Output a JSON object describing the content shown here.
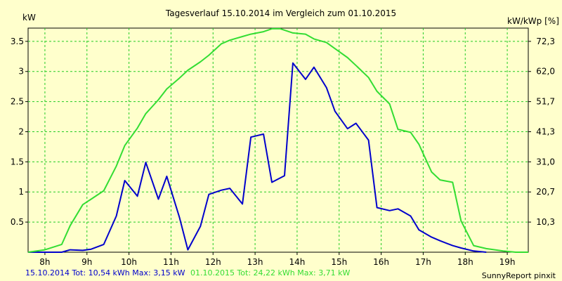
{
  "chart_data": {
    "type": "line",
    "title": "Tagesverlauf 15.10.2014 im Vergleich zum 01.10.2015",
    "ylabel_left": "kW",
    "ylabel_right": "kW/kWp [%]",
    "xlim": [
      7.6,
      19.5
    ],
    "ylim": [
      0,
      3.72
    ],
    "x_ticks": [
      {
        "value": 8,
        "label": "8h"
      },
      {
        "value": 9,
        "label": "9h"
      },
      {
        "value": 10,
        "label": "10h"
      },
      {
        "value": 11,
        "label": "11h"
      },
      {
        "value": 12,
        "label": "12h"
      },
      {
        "value": 13,
        "label": "13h"
      },
      {
        "value": 14,
        "label": "14h"
      },
      {
        "value": 15,
        "label": "15h"
      },
      {
        "value": 16,
        "label": "16h"
      },
      {
        "value": 17,
        "label": "17h"
      },
      {
        "value": 18,
        "label": "18h"
      },
      {
        "value": 19,
        "label": "19h"
      }
    ],
    "y_ticks_left": [
      {
        "value": 0.5,
        "label": "0.5"
      },
      {
        "value": 1,
        "label": "1"
      },
      {
        "value": 1.5,
        "label": "1.5"
      },
      {
        "value": 2,
        "label": "2"
      },
      {
        "value": 2.5,
        "label": "2.5"
      },
      {
        "value": 3,
        "label": "3"
      },
      {
        "value": 3.5,
        "label": "3.5"
      }
    ],
    "y_ticks_right": [
      {
        "value": 0.5,
        "label": "10,3"
      },
      {
        "value": 1,
        "label": "20,7"
      },
      {
        "value": 1.5,
        "label": "31,0"
      },
      {
        "value": 2,
        "label": "41,3"
      },
      {
        "value": 2.5,
        "label": "51,7"
      },
      {
        "value": 3,
        "label": "62,0"
      },
      {
        "value": 3.5,
        "label": "72,3"
      }
    ],
    "grid": true,
    "series": [
      {
        "color": "#0000cc",
        "x": [
          7.6,
          8.4,
          8.6,
          8.9,
          9.1,
          9.4,
          9.7,
          9.9,
          10.2,
          10.4,
          10.7,
          10.9,
          11.2,
          11.4,
          11.7,
          11.9,
          12.2,
          12.4,
          12.7,
          12.9,
          13.2,
          13.4,
          13.7,
          13.9,
          14.2,
          14.4,
          14.7,
          14.9,
          15.2,
          15.4,
          15.7,
          15.9,
          16.2,
          16.4,
          16.7,
          16.9,
          17.2,
          17.4,
          17.7,
          17.9,
          18.2,
          18.5
        ],
        "y": [
          0,
          0,
          0.04,
          0.03,
          0.05,
          0.13,
          0.6,
          1.19,
          0.93,
          1.49,
          0.88,
          1.26,
          0.58,
          0.04,
          0.43,
          0.96,
          1.03,
          1.06,
          0.8,
          1.91,
          1.96,
          1.16,
          1.27,
          3.14,
          2.87,
          3.07,
          2.73,
          2.34,
          2.05,
          2.14,
          1.86,
          0.74,
          0.69,
          0.72,
          0.6,
          0.37,
          0.25,
          0.19,
          0.11,
          0.07,
          0.02,
          0
        ]
      },
      {
        "color": "#33dd33",
        "x": [
          7.6,
          8.0,
          8.4,
          8.6,
          8.9,
          9.1,
          9.4,
          9.7,
          9.9,
          10.2,
          10.4,
          10.7,
          10.9,
          11.2,
          11.4,
          11.7,
          11.9,
          12.2,
          12.4,
          12.7,
          12.9,
          13.2,
          13.4,
          13.6,
          13.9,
          14.2,
          14.4,
          14.7,
          14.9,
          15.2,
          15.4,
          15.7,
          15.9,
          16.2,
          16.4,
          16.7,
          16.9,
          17.2,
          17.4,
          17.7,
          17.9,
          18.2,
          18.5,
          18.9,
          19.2,
          19.5
        ],
        "y": [
          0,
          0.04,
          0.13,
          0.44,
          0.79,
          0.88,
          1.02,
          1.43,
          1.77,
          2.06,
          2.3,
          2.53,
          2.71,
          2.89,
          3.02,
          3.16,
          3.27,
          3.46,
          3.52,
          3.58,
          3.62,
          3.66,
          3.71,
          3.71,
          3.64,
          3.62,
          3.54,
          3.48,
          3.38,
          3.23,
          3.1,
          2.9,
          2.67,
          2.46,
          2.04,
          1.99,
          1.79,
          1.33,
          1.2,
          1.16,
          0.52,
          0.11,
          0.06,
          0.02,
          0,
          0
        ]
      }
    ]
  },
  "footer": {
    "series1_text": "15.10.2014 Tot: 10,54 kWh Max: 3,15 kW",
    "series2_text": "01.10.2015 Tot: 24,22 kWh Max: 3,71 kW",
    "credit": "SunnyReport pinxit",
    "series1_color": "#0000cc",
    "series2_color": "#33dd33"
  }
}
